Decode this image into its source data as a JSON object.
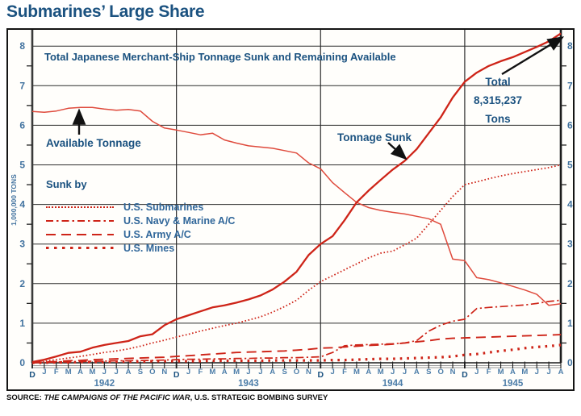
{
  "page": {
    "title": "Submarines’ Large Share",
    "source_prefix": "SOURCE: ",
    "source_work": "THE CAMPAIGNS OF THE PACIFIC WAR",
    "source_rest": ", U.S. STRATEGIC BOMBING SURVEY"
  },
  "chart_data": {
    "type": "line",
    "title": "Total Japanese Merchant-Ship Tonnage Sunk and Remaining Available",
    "ylabel": "1,000,000 TONS",
    "ylim": [
      0,
      8.4
    ],
    "y_major_ticks": [
      0,
      1,
      2,
      3,
      4,
      5,
      6,
      7,
      8
    ],
    "grid": "on",
    "x_month_labels": [
      "D",
      "J",
      "F",
      "M",
      "A",
      "M",
      "J",
      "J",
      "A",
      "S",
      "O",
      "N",
      "D",
      "J",
      "F",
      "M",
      "A",
      "M",
      "J",
      "J",
      "A",
      "S",
      "O",
      "N",
      "D",
      "J",
      "F",
      "M",
      "A",
      "M",
      "J",
      "J",
      "A",
      "S",
      "O",
      "N",
      "D",
      "J",
      "F",
      "M",
      "A",
      "M",
      "J",
      "J",
      "A"
    ],
    "december_month_indexes": [
      0,
      12,
      24,
      36
    ],
    "x_year_labels": [
      {
        "label": "1942",
        "center_month": 6
      },
      {
        "label": "1943",
        "center_month": 18
      },
      {
        "label": "1944",
        "center_month": 30
      },
      {
        "label": "1945",
        "center_month": 40
      }
    ],
    "annotations": {
      "available": "Available Tonnage",
      "sunk": "Tonnage Sunk",
      "total_line1": "Total",
      "total_line2": "8,315,237",
      "total_line3": "Tons"
    },
    "legend": {
      "heading": "Sunk by",
      "position": "middle-left",
      "items": [
        {
          "label": "U.S. Submarines",
          "style": "dotted"
        },
        {
          "label": "U.S. Navy & Marine A/C",
          "style": "dash-dot"
        },
        {
          "label": "U.S. Army A/C",
          "style": "long-dash"
        },
        {
          "label": "U.S. Mines",
          "style": "bold-dots"
        }
      ]
    },
    "series": [
      {
        "name": "Available Tonnage",
        "style": "solid-thin",
        "values": [
          6.35,
          6.33,
          6.36,
          6.43,
          6.45,
          6.45,
          6.41,
          6.38,
          6.4,
          6.36,
          6.1,
          5.93,
          5.88,
          5.82,
          5.76,
          5.8,
          5.63,
          5.55,
          5.48,
          5.45,
          5.42,
          5.36,
          5.3,
          5.05,
          4.9,
          4.55,
          4.3,
          4.05,
          3.92,
          3.85,
          3.8,
          3.76,
          3.7,
          3.64,
          3.5,
          2.62,
          2.58,
          2.15,
          2.1,
          2.02,
          1.93,
          1.84,
          1.73,
          1.45,
          1.49
        ]
      },
      {
        "name": "Tonnage Sunk",
        "style": "solid-thick",
        "values": [
          0.02,
          0.08,
          0.16,
          0.25,
          0.28,
          0.38,
          0.45,
          0.5,
          0.55,
          0.67,
          0.72,
          0.95,
          1.1,
          1.2,
          1.3,
          1.4,
          1.45,
          1.52,
          1.6,
          1.7,
          1.85,
          2.05,
          2.3,
          2.72,
          3.0,
          3.2,
          3.6,
          4.05,
          4.35,
          4.62,
          4.88,
          5.1,
          5.4,
          5.8,
          6.2,
          6.7,
          7.1,
          7.33,
          7.5,
          7.62,
          7.72,
          7.85,
          7.98,
          8.12,
          8.32
        ]
      },
      {
        "name": "U.S. Submarines",
        "style": "dotted",
        "values": [
          0.01,
          0.04,
          0.08,
          0.12,
          0.16,
          0.21,
          0.26,
          0.3,
          0.35,
          0.42,
          0.5,
          0.57,
          0.65,
          0.72,
          0.8,
          0.87,
          0.94,
          1.0,
          1.08,
          1.16,
          1.28,
          1.42,
          1.58,
          1.83,
          2.05,
          2.2,
          2.35,
          2.5,
          2.65,
          2.77,
          2.82,
          2.98,
          3.15,
          3.5,
          3.85,
          4.2,
          4.5,
          4.57,
          4.65,
          4.72,
          4.78,
          4.83,
          4.88,
          4.93,
          5.0
        ]
      },
      {
        "name": "U.S. Navy & Marine A/C",
        "style": "dash-dot",
        "values": [
          0.0,
          0.01,
          0.02,
          0.02,
          0.03,
          0.04,
          0.04,
          0.05,
          0.05,
          0.06,
          0.06,
          0.07,
          0.08,
          0.09,
          0.09,
          0.1,
          0.1,
          0.11,
          0.11,
          0.12,
          0.12,
          0.13,
          0.13,
          0.14,
          0.15,
          0.26,
          0.43,
          0.45,
          0.46,
          0.47,
          0.48,
          0.5,
          0.56,
          0.8,
          0.95,
          1.05,
          1.1,
          1.37,
          1.4,
          1.42,
          1.44,
          1.46,
          1.5,
          1.55,
          1.58
        ]
      },
      {
        "name": "U.S. Army A/C",
        "style": "long-dash",
        "values": [
          0.0,
          0.02,
          0.03,
          0.05,
          0.06,
          0.08,
          0.09,
          0.1,
          0.11,
          0.12,
          0.13,
          0.14,
          0.16,
          0.18,
          0.2,
          0.22,
          0.24,
          0.26,
          0.27,
          0.28,
          0.29,
          0.3,
          0.32,
          0.34,
          0.37,
          0.38,
          0.4,
          0.42,
          0.44,
          0.45,
          0.47,
          0.5,
          0.53,
          0.56,
          0.6,
          0.62,
          0.63,
          0.64,
          0.65,
          0.66,
          0.67,
          0.68,
          0.69,
          0.7,
          0.71
        ]
      },
      {
        "name": "U.S. Mines",
        "style": "bold-dots",
        "values": [
          0.0,
          0.0,
          0.01,
          0.01,
          0.02,
          0.02,
          0.02,
          0.03,
          0.03,
          0.03,
          0.04,
          0.04,
          0.04,
          0.04,
          0.04,
          0.05,
          0.05,
          0.05,
          0.05,
          0.05,
          0.06,
          0.06,
          0.06,
          0.06,
          0.06,
          0.07,
          0.07,
          0.08,
          0.09,
          0.1,
          0.1,
          0.11,
          0.12,
          0.13,
          0.14,
          0.16,
          0.2,
          0.22,
          0.26,
          0.3,
          0.33,
          0.37,
          0.4,
          0.42,
          0.45
        ]
      }
    ],
    "colors": {
      "line_red": "#ce2418",
      "available_red": "#df4a3c",
      "label_blue": "#1b5280",
      "tick_blue": "#41729f",
      "month_blue": "#4d7ea9",
      "grid_black": "#2d2d2d"
    }
  }
}
